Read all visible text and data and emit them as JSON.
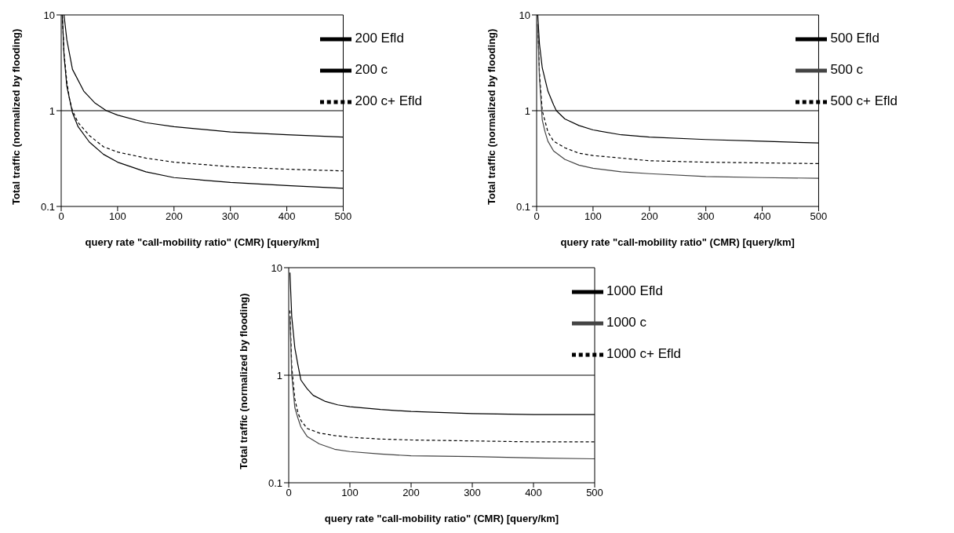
{
  "chart_data": [
    {
      "type": "line",
      "xlabel": "query rate \"call-mobility ratio\" (CMR) [query/km]",
      "ylabel": "Total traffic (normalized by flooding)",
      "log": "y",
      "xlim": [
        0,
        500
      ],
      "ylim": [
        0.1,
        10
      ],
      "xticks": [
        0,
        100,
        200,
        300,
        400,
        500
      ],
      "yticks": [
        0.1,
        1,
        10
      ],
      "legend": "top right",
      "grid": false,
      "marker": "none",
      "ref_lines": [
        {
          "axis": "y",
          "value": 1,
          "color": "#000000"
        }
      ],
      "series": [
        {
          "name": "200 Efld",
          "color": "#000000",
          "line_style": "solid",
          "x": [
            5,
            10,
            20,
            40,
            60,
            80,
            100,
            150,
            200,
            300,
            400,
            500
          ],
          "values": [
            10,
            5.5,
            2.7,
            1.6,
            1.2,
            1.0,
            0.9,
            0.75,
            0.68,
            0.6,
            0.56,
            0.53
          ]
        },
        {
          "name": "200 c+ Efld",
          "color": "#000000",
          "line_style": "dashed",
          "x": [
            2,
            5,
            10,
            15,
            20,
            30,
            50,
            75,
            100,
            150,
            200,
            300,
            400,
            500
          ],
          "values": [
            10,
            4,
            2,
            1.3,
            1.0,
            0.75,
            0.55,
            0.42,
            0.37,
            0.32,
            0.29,
            0.26,
            0.245,
            0.235
          ]
        },
        {
          "name": "200 c",
          "color": "#000000",
          "line_style": "solid",
          "x": [
            2,
            5,
            10,
            20,
            30,
            50,
            75,
            100,
            150,
            200,
            300,
            400,
            500
          ],
          "values": [
            10,
            3.8,
            1.8,
            0.95,
            0.68,
            0.47,
            0.35,
            0.29,
            0.23,
            0.2,
            0.178,
            0.165,
            0.155
          ]
        }
      ]
    },
    {
      "type": "line",
      "xlabel": "query rate \"call-mobility ratio\" (CMR) [query/km]",
      "ylabel": "Total traffic (normalized by flooding)",
      "log": "y",
      "xlim": [
        0,
        500
      ],
      "ylim": [
        0.1,
        10
      ],
      "xticks": [
        0,
        100,
        200,
        300,
        400,
        500
      ],
      "yticks": [
        0.1,
        1,
        10
      ],
      "legend": "top right",
      "grid": false,
      "marker": "none",
      "ref_lines": [
        {
          "axis": "y",
          "value": 1,
          "color": "#000000"
        }
      ],
      "series": [
        {
          "name": "500 Efld",
          "color": "#000000",
          "line_style": "solid",
          "x": [
            2,
            5,
            10,
            20,
            30,
            35,
            50,
            75,
            100,
            150,
            200,
            300,
            400,
            500
          ],
          "values": [
            10,
            5,
            2.8,
            1.6,
            1.15,
            1.0,
            0.82,
            0.7,
            0.63,
            0.56,
            0.53,
            0.5,
            0.48,
            0.46
          ]
        },
        {
          "name": "500 c+ Efld",
          "color": "#000000",
          "line_style": "dashed",
          "x": [
            2,
            5,
            10,
            20,
            30,
            50,
            75,
            100,
            150,
            200,
            300,
            400,
            500
          ],
          "values": [
            8,
            2.5,
            1.0,
            0.6,
            0.48,
            0.41,
            0.36,
            0.34,
            0.32,
            0.3,
            0.29,
            0.285,
            0.28
          ]
        },
        {
          "name": "500 c",
          "color": "#444444",
          "line_style": "solid",
          "x": [
            2,
            5,
            10,
            15,
            20,
            30,
            50,
            75,
            100,
            150,
            200,
            300,
            400,
            500
          ],
          "values": [
            8,
            2.2,
            0.8,
            0.6,
            0.48,
            0.38,
            0.31,
            0.27,
            0.25,
            0.23,
            0.22,
            0.205,
            0.2,
            0.197
          ]
        }
      ]
    },
    {
      "type": "line",
      "xlabel": "query rate \"call-mobility ratio\" (CMR) [query/km]",
      "ylabel": "Total traffic (normalized by flooding)",
      "log": "y",
      "xlim": [
        0,
        500
      ],
      "ylim": [
        0.1,
        10
      ],
      "xticks": [
        0,
        100,
        200,
        300,
        400,
        500
      ],
      "yticks": [
        0.1,
        1,
        10
      ],
      "legend": "top right",
      "grid": false,
      "marker": "none",
      "ref_lines": [
        {
          "axis": "y",
          "value": 1,
          "color": "#000000"
        }
      ],
      "series": [
        {
          "name": "1000 Efld",
          "color": "#000000",
          "line_style": "solid",
          "x": [
            2,
            5,
            10,
            15,
            20,
            30,
            40,
            60,
            80,
            100,
            150,
            200,
            300,
            400,
            500
          ],
          "values": [
            9,
            3.5,
            1.8,
            1.25,
            0.9,
            0.75,
            0.65,
            0.57,
            0.53,
            0.51,
            0.48,
            0.46,
            0.44,
            0.43,
            0.43
          ]
        },
        {
          "name": "1000 c+ Efld",
          "color": "#000000",
          "line_style": "dashed",
          "x": [
            2,
            5,
            10,
            15,
            20,
            30,
            50,
            75,
            100,
            150,
            200,
            300,
            400,
            500
          ],
          "values": [
            4,
            1.2,
            0.6,
            0.45,
            0.38,
            0.32,
            0.29,
            0.275,
            0.265,
            0.255,
            0.25,
            0.245,
            0.24,
            0.24
          ]
        },
        {
          "name": "1000 c",
          "color": "#444444",
          "line_style": "solid",
          "x": [
            2,
            5,
            10,
            15,
            20,
            30,
            50,
            75,
            100,
            150,
            200,
            300,
            400,
            500
          ],
          "values": [
            3.5,
            1.0,
            0.5,
            0.4,
            0.33,
            0.27,
            0.23,
            0.205,
            0.195,
            0.185,
            0.178,
            0.175,
            0.17,
            0.167
          ]
        }
      ]
    }
  ]
}
